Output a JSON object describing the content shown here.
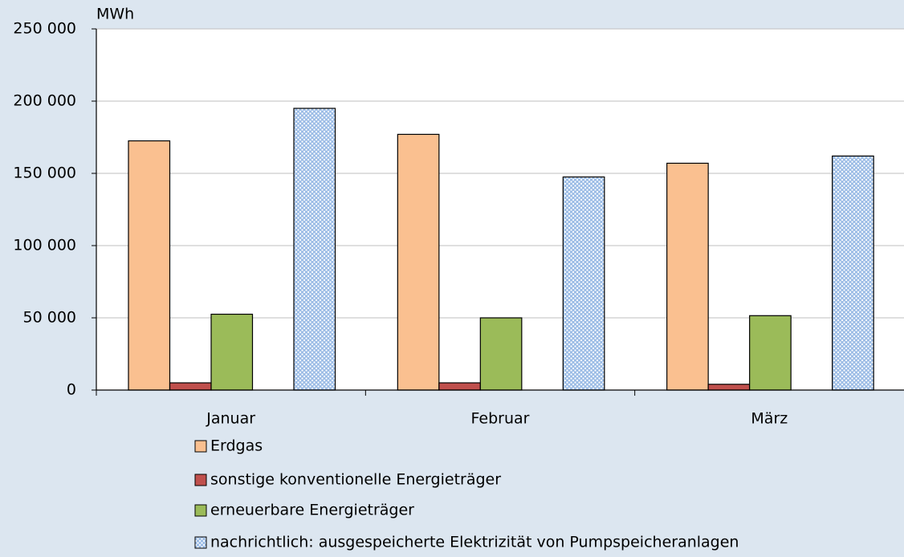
{
  "chart_data": {
    "type": "bar",
    "y_label": "MWh",
    "categories": [
      "Januar",
      "Februar",
      "März"
    ],
    "series": [
      {
        "name": "Erdgas",
        "color": "#fac090",
        "values": [
          172500,
          177000,
          157000
        ]
      },
      {
        "name": "sonstige konventionelle Energieträger",
        "color": "#c0504d",
        "values": [
          5000,
          5000,
          4000
        ]
      },
      {
        "name": "erneuerbare Energieträger",
        "color": "#9bbb59",
        "values": [
          52500,
          50000,
          51500
        ]
      },
      {
        "name": "nachrichtlich: ausgespeicherte Elektrizität von Pumpspeicheranlagen",
        "color": "#9dbde6",
        "pattern": "dotted",
        "values": [
          195000,
          147500,
          162000
        ]
      }
    ],
    "ylim": [
      0,
      250000
    ],
    "yticks": [
      0,
      {
        "value": 50000,
        "label": "50 000"
      },
      {
        "value": 100000,
        "label": "100 000"
      },
      {
        "value": 150000,
        "label": "150 000"
      },
      {
        "value": 200000,
        "label": "200 000"
      },
      {
        "value": 250000,
        "label": "250 000"
      }
    ],
    "grid": true
  }
}
